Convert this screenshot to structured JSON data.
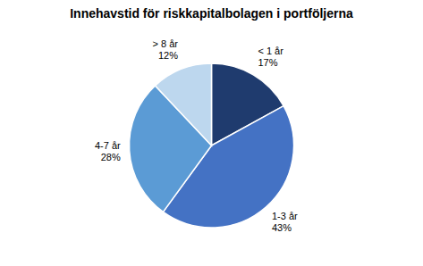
{
  "chart_data": {
    "type": "pie",
    "title": "Innehavstid för riskkapitalbolagen i portföljerna",
    "categories": [
      "< 1 år",
      "1-3 år",
      "4-7 år",
      "> 8 år"
    ],
    "values": [
      17,
      43,
      28,
      12
    ],
    "value_labels": [
      "17%",
      "43%",
      "28%",
      "12%"
    ],
    "data_labels": true,
    "colors": [
      "#1F3B6E",
      "#4472C4",
      "#5B9BD5",
      "#BDD7EE"
    ]
  }
}
